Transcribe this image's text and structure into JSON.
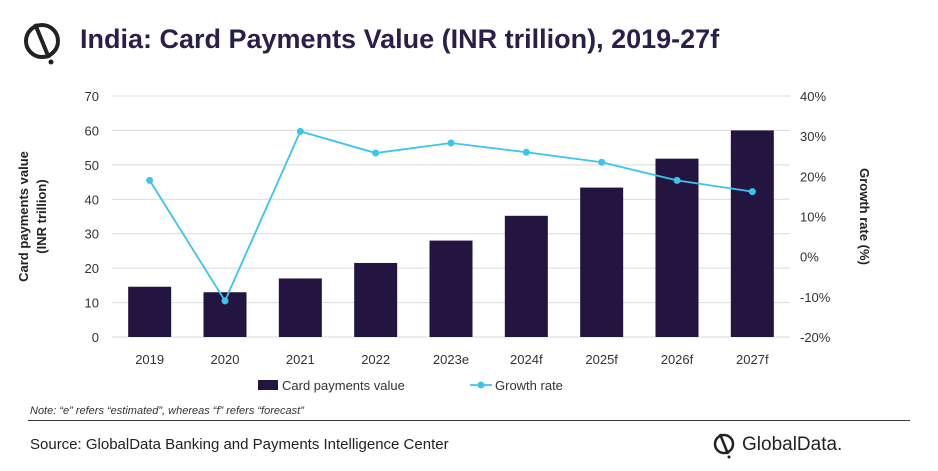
{
  "header": {
    "title": "India: Card Payments Value (INR trillion), 2019-27f",
    "logo_icon": "globaldata-logo-icon"
  },
  "chart_data": {
    "type": "bar",
    "categories": [
      "2019",
      "2020",
      "2021",
      "2022",
      "2023e",
      "2024f",
      "2025f",
      "2026f",
      "2027f"
    ],
    "series": [
      {
        "name": "Card payments value",
        "type": "bar",
        "axis": "left",
        "color": "#23153f",
        "values": [
          14.6,
          13.0,
          17.0,
          21.5,
          28.0,
          35.2,
          43.4,
          51.8,
          60.0
        ]
      },
      {
        "name": "Growth rate",
        "type": "line",
        "axis": "right",
        "color": "#3bc4ee",
        "values": [
          19.0,
          -11.0,
          31.2,
          25.8,
          28.3,
          26.0,
          23.5,
          19.0,
          16.2
        ]
      }
    ],
    "y_left": {
      "label": [
        "Card payments value",
        "(INR trillion)"
      ],
      "range": [
        0,
        70
      ],
      "ticks": [
        "0",
        "10",
        "20",
        "30",
        "40",
        "50",
        "60",
        "70"
      ]
    },
    "y_right": {
      "label": "Growth rate (%)",
      "range": [
        -20,
        40
      ],
      "ticks": [
        "-20%",
        "-10%",
        "0%",
        "10%",
        "20%",
        "30%",
        "40%"
      ]
    },
    "legend": {
      "position": "bottom"
    },
    "grid": true
  },
  "footer": {
    "note": "Note: “e” refers “estimated”, whereas “f” refers “forecast”",
    "source": "Source: GlobalData Banking and Payments Intelligence Center",
    "brand": "GlobalData."
  }
}
